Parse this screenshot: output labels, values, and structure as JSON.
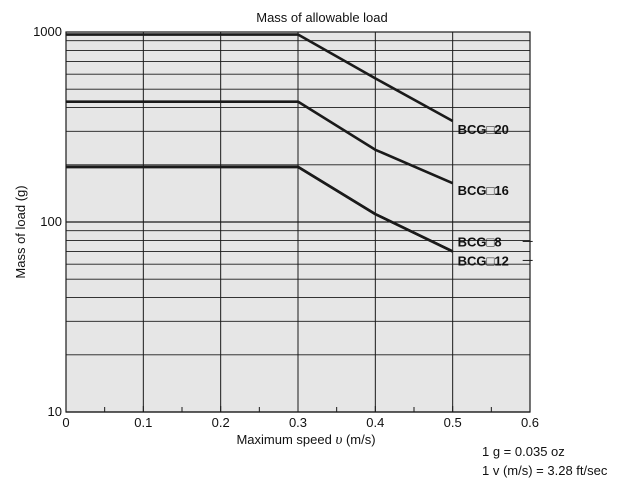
{
  "chart_data": {
    "type": "line",
    "title": "Mass of allowable load",
    "xlabel_prefix": "Maximum speed ",
    "xlabel_var": "υ",
    "xlabel_suffix": " (m/s)",
    "ylabel": "Mass of load (g)",
    "xlim": [
      0,
      0.6
    ],
    "ylim": [
      10,
      1000
    ],
    "yscale": "log",
    "grid": true,
    "x_ticks": [
      "0",
      "0.1",
      "0.2",
      "0.3",
      "0.4",
      "0.5",
      "0.6"
    ],
    "y_ticks": [
      "10",
      "100",
      "1000"
    ],
    "series": [
      {
        "name": "BCG□20",
        "x": [
          0,
          0.3,
          0.4,
          0.5
        ],
        "y": [
          970,
          970,
          570,
          340
        ]
      },
      {
        "name": "BCG□16",
        "x": [
          0,
          0.3,
          0.4,
          0.5
        ],
        "y": [
          430,
          430,
          240,
          160
        ]
      },
      {
        "name": "BCG□8",
        "x": [
          0,
          0.3,
          0.4,
          0.5
        ],
        "y": [
          195,
          195,
          110,
          70
        ]
      },
      {
        "name": "BCG□12",
        "x": [
          0,
          0.3,
          0.4,
          0.5
        ],
        "y": [
          195,
          195,
          110,
          70
        ]
      }
    ],
    "colors": {
      "plot_background": "#e6e6e6",
      "line": "#1a1a1a",
      "grid": "#1a1a1a"
    }
  },
  "notes": [
    "1 g = 0.035 oz",
    "1 v (m/s) = 3.28 ft/sec"
  ]
}
